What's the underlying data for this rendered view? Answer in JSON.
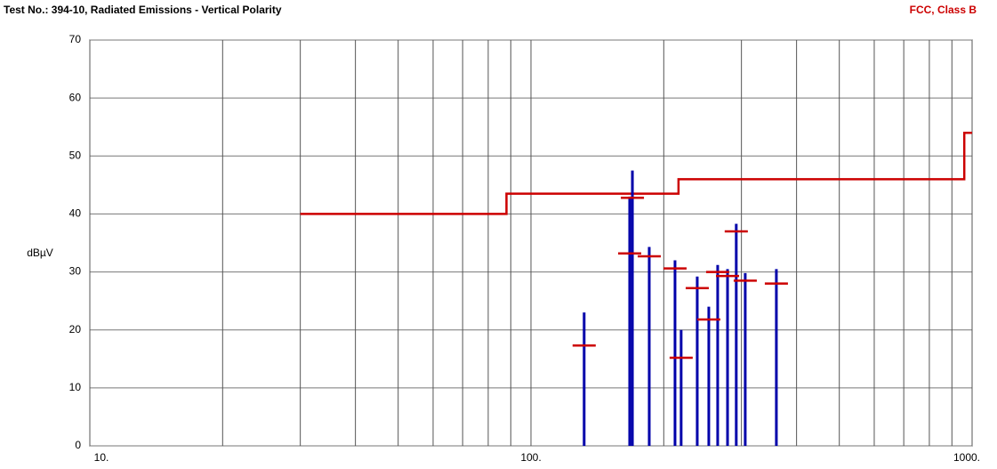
{
  "chart_data": {
    "type": "emission",
    "title": "Test No.: 394-10, Radiated Emissions - Vertical Polarity",
    "subtitle": "FCC, Class B",
    "ylabel": "dBµV",
    "xscale": "log",
    "xlim": [
      10,
      1000
    ],
    "ylim": [
      0,
      70
    ],
    "xticks": [
      {
        "value": 10,
        "label": "10."
      },
      {
        "value": 100,
        "label": "100."
      },
      {
        "value": 1000,
        "label": "1000."
      }
    ],
    "x_minor_ticks": [
      20,
      30,
      40,
      50,
      60,
      70,
      80,
      90,
      200,
      300,
      400,
      500,
      600,
      700,
      800,
      900
    ],
    "yticks": [
      0,
      10,
      20,
      30,
      40,
      50,
      60,
      70
    ],
    "grid": true,
    "limit": {
      "color": "#cc0000",
      "x": [
        30,
        88,
        88,
        216,
        216,
        960,
        960,
        1000
      ],
      "values": [
        40,
        40,
        43.5,
        43.5,
        46,
        46,
        54,
        54
      ]
    },
    "x": [
      132,
      167.4,
      169.8,
      185.4,
      212.1,
      219,
      238.2,
      253,
      265,
      279,
      292,
      306,
      360
    ],
    "series": [
      {
        "color": "#0000aa",
        "values": [
          23,
          43,
          47.5,
          34.3,
          32,
          20,
          29.2,
          24,
          31.2,
          30.5,
          38.3,
          29.8,
          30.5
        ]
      },
      {
        "color": "#cc0000",
        "values": [
          17.3,
          33.2,
          42.8,
          32.7,
          30.6,
          15.2,
          27.2,
          21.8,
          30,
          29.3,
          37,
          28.5,
          28
        ]
      }
    ]
  }
}
